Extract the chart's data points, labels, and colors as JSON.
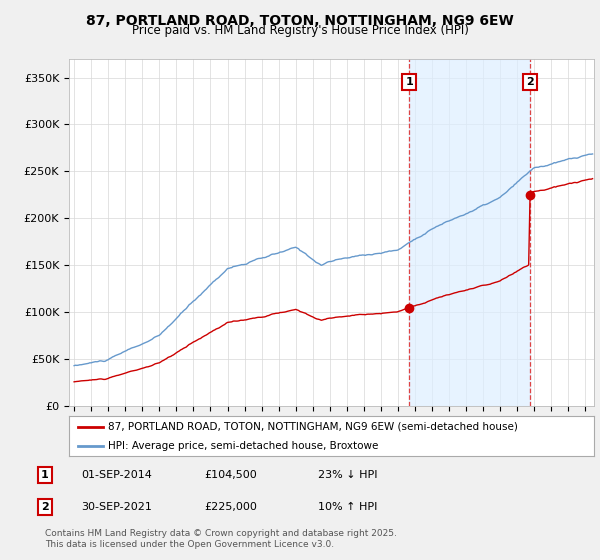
{
  "title": "87, PORTLAND ROAD, TOTON, NOTTINGHAM, NG9 6EW",
  "subtitle": "Price paid vs. HM Land Registry's House Price Index (HPI)",
  "ylabel_ticks": [
    "£0",
    "£50K",
    "£100K",
    "£150K",
    "£200K",
    "£250K",
    "£300K",
    "£350K"
  ],
  "ytick_vals": [
    0,
    50000,
    100000,
    150000,
    200000,
    250000,
    300000,
    350000
  ],
  "ylim": [
    0,
    370000
  ],
  "xlim_start": 1994.7,
  "xlim_end": 2025.5,
  "legend_line1": "87, PORTLAND ROAD, TOTON, NOTTINGHAM, NG9 6EW (semi-detached house)",
  "legend_line2": "HPI: Average price, semi-detached house, Broxtowe",
  "vline1_x": 2014.67,
  "vline2_x": 2021.75,
  "footer": "Contains HM Land Registry data © Crown copyright and database right 2025.\nThis data is licensed under the Open Government Licence v3.0.",
  "color_house": "#cc0000",
  "color_hpi": "#6699cc",
  "color_vline": "#dd4444",
  "color_shade": "#ddeeff",
  "background_color": "#f0f0f0",
  "plot_bg": "#ffffff",
  "sale1_year": 2014.67,
  "sale1_price": 104500,
  "sale2_year": 2021.75,
  "sale2_price": 225000,
  "ann1_date": "01-SEP-2014",
  "ann1_price": "£104,500",
  "ann1_hpi": "23% ↓ HPI",
  "ann2_date": "30-SEP-2021",
  "ann2_price": "£225,000",
  "ann2_hpi": "10% ↑ HPI"
}
